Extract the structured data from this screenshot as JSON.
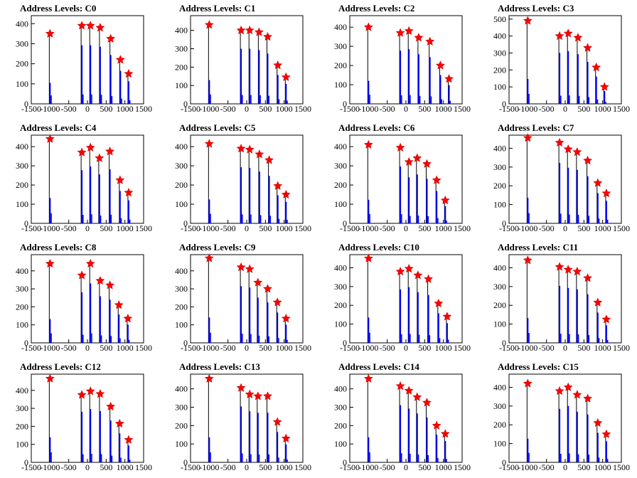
{
  "chart_data": [
    {
      "type": "bar",
      "title": "Address Levels: C0",
      "xlim": [
        -1500,
        1500
      ],
      "ylim": [
        0,
        440
      ],
      "xticks": [
        -1500,
        -1000,
        -500,
        0,
        500,
        1000,
        1500
      ],
      "xtick_labels": [
        "-1500",
        "-1000",
        "-500",
        "0",
        "500",
        "1000",
        "1500"
      ],
      "yticks": [
        0,
        100,
        200,
        300,
        400
      ],
      "ytick_labels": [
        "0",
        "100",
        "200",
        "300",
        "400"
      ],
      "peaks": [
        {
          "x": -1000,
          "y": 350
        },
        {
          "x": -150,
          "y": 390
        },
        {
          "x": 80,
          "y": 390
        },
        {
          "x": 340,
          "y": 380
        },
        {
          "x": 620,
          "y": 325
        },
        {
          "x": 880,
          "y": 220
        },
        {
          "x": 1100,
          "y": 150
        }
      ]
    },
    {
      "type": "bar",
      "title": "Address Levels: C1",
      "xlim": [
        -1500,
        1500
      ],
      "ylim": [
        0,
        480
      ],
      "xticks": [
        -1500,
        -1000,
        -500,
        0,
        500,
        1000,
        1500
      ],
      "xtick_labels": [
        "-1500",
        "-1000",
        "-500",
        "0",
        "500",
        "1000",
        "1500"
      ],
      "yticks": [
        0,
        100,
        200,
        300,
        400
      ],
      "ytick_labels": [
        "0",
        "100",
        "200",
        "300",
        "400"
      ],
      "peaks": [
        {
          "x": -1000,
          "y": 430
        },
        {
          "x": -150,
          "y": 400
        },
        {
          "x": 80,
          "y": 400
        },
        {
          "x": 330,
          "y": 390
        },
        {
          "x": 560,
          "y": 365
        },
        {
          "x": 830,
          "y": 210
        },
        {
          "x": 1050,
          "y": 145
        }
      ]
    },
    {
      "type": "bar",
      "title": "Address Levels: C2",
      "xlim": [
        -1500,
        1500
      ],
      "ylim": [
        0,
        460
      ],
      "xticks": [
        -1500,
        -1000,
        -500,
        0,
        500,
        1000,
        1500
      ],
      "xtick_labels": [
        "-1500",
        "-1000",
        "-500",
        "0",
        "500",
        "1000",
        "1500"
      ],
      "yticks": [
        0,
        100,
        200,
        300,
        400
      ],
      "ytick_labels": [
        "0",
        "100",
        "200",
        "300",
        "400"
      ],
      "peaks": [
        {
          "x": -1000,
          "y": 400
        },
        {
          "x": -150,
          "y": 370
        },
        {
          "x": 80,
          "y": 380
        },
        {
          "x": 340,
          "y": 345
        },
        {
          "x": 640,
          "y": 325
        },
        {
          "x": 920,
          "y": 200
        },
        {
          "x": 1150,
          "y": 130
        }
      ]
    },
    {
      "type": "bar",
      "title": "Address Levels: C3",
      "xlim": [
        -1500,
        1500
      ],
      "ylim": [
        0,
        520
      ],
      "xticks": [
        -1500,
        -1000,
        -500,
        0,
        500,
        1000,
        1500
      ],
      "xtick_labels": [
        "-1500",
        "-1000",
        "-500",
        "0",
        "500",
        "1000",
        "1500"
      ],
      "yticks": [
        0,
        100,
        200,
        300,
        400,
        500
      ],
      "ytick_labels": [
        "0",
        "100",
        "200",
        "300",
        "400",
        "500"
      ],
      "peaks": [
        {
          "x": -1000,
          "y": 490
        },
        {
          "x": -150,
          "y": 400
        },
        {
          "x": 80,
          "y": 415
        },
        {
          "x": 340,
          "y": 390
        },
        {
          "x": 600,
          "y": 330
        },
        {
          "x": 830,
          "y": 215
        },
        {
          "x": 1050,
          "y": 100
        }
      ]
    },
    {
      "type": "bar",
      "title": "Address Levels: C4",
      "xlim": [
        -1500,
        1500
      ],
      "ylim": [
        0,
        460
      ],
      "xticks": [
        -1500,
        -1000,
        -500,
        0,
        500,
        1000,
        1500
      ],
      "xtick_labels": [
        "-1500",
        "-1000",
        "-500",
        "0",
        "500",
        "1000",
        "1500"
      ],
      "yticks": [
        0,
        100,
        200,
        300,
        400
      ],
      "ytick_labels": [
        "0",
        "100",
        "200",
        "300",
        "400"
      ],
      "peaks": [
        {
          "x": -1000,
          "y": 440
        },
        {
          "x": -150,
          "y": 370
        },
        {
          "x": 80,
          "y": 395
        },
        {
          "x": 320,
          "y": 340
        },
        {
          "x": 600,
          "y": 375
        },
        {
          "x": 870,
          "y": 225
        },
        {
          "x": 1100,
          "y": 160
        }
      ]
    },
    {
      "type": "bar",
      "title": "Address Levels: C5",
      "xlim": [
        -1500,
        1500
      ],
      "ylim": [
        0,
        460
      ],
      "xticks": [
        -1500,
        -1000,
        -500,
        0,
        500,
        1000,
        1500
      ],
      "xtick_labels": [
        "-1500",
        "-1000",
        "-500",
        "0",
        "500",
        "1000",
        "1500"
      ],
      "yticks": [
        0,
        100,
        200,
        300,
        400
      ],
      "ytick_labels": [
        "0",
        "100",
        "200",
        "300",
        "400"
      ],
      "peaks": [
        {
          "x": -1000,
          "y": 415
        },
        {
          "x": -150,
          "y": 390
        },
        {
          "x": 80,
          "y": 385
        },
        {
          "x": 340,
          "y": 360
        },
        {
          "x": 600,
          "y": 330
        },
        {
          "x": 830,
          "y": 195
        },
        {
          "x": 1050,
          "y": 150
        }
      ]
    },
    {
      "type": "bar",
      "title": "Address Levels: C6",
      "xlim": [
        -1500,
        1500
      ],
      "ylim": [
        0,
        460
      ],
      "xticks": [
        -1500,
        -1000,
        -500,
        0,
        500,
        1000,
        1500
      ],
      "xtick_labels": [
        "-1500",
        "-1000",
        "-500",
        "0",
        "500",
        "1000",
        "1500"
      ],
      "yticks": [
        0,
        100,
        200,
        300,
        400
      ],
      "ytick_labels": [
        "0",
        "100",
        "200",
        "300",
        "400"
      ],
      "peaks": [
        {
          "x": -1000,
          "y": 410
        },
        {
          "x": -150,
          "y": 395
        },
        {
          "x": 80,
          "y": 320
        },
        {
          "x": 300,
          "y": 340
        },
        {
          "x": 560,
          "y": 310
        },
        {
          "x": 820,
          "y": 225
        },
        {
          "x": 1050,
          "y": 120
        }
      ]
    },
    {
      "type": "bar",
      "title": "Address Levels: C7",
      "xlim": [
        -1500,
        1500
      ],
      "ylim": [
        0,
        470
      ],
      "xticks": [
        -1500,
        -1000,
        -500,
        0,
        500,
        1000,
        1500
      ],
      "xtick_labels": [
        "-1500",
        "-1000",
        "-500",
        "0",
        "500",
        "1000",
        "1500"
      ],
      "yticks": [
        0,
        100,
        200,
        300,
        400
      ],
      "ytick_labels": [
        "0",
        "100",
        "200",
        "300",
        "400"
      ],
      "peaks": [
        {
          "x": -1000,
          "y": 455
        },
        {
          "x": -150,
          "y": 430
        },
        {
          "x": 80,
          "y": 395
        },
        {
          "x": 320,
          "y": 380
        },
        {
          "x": 600,
          "y": 335
        },
        {
          "x": 870,
          "y": 215
        },
        {
          "x": 1100,
          "y": 160
        }
      ]
    },
    {
      "type": "bar",
      "title": "Address Levels: C8",
      "xlim": [
        -1500,
        1500
      ],
      "ylim": [
        0,
        490
      ],
      "xticks": [
        -1500,
        -1000,
        -500,
        0,
        500,
        1000,
        1500
      ],
      "xtick_labels": [
        "-1500",
        "-1000",
        "-500",
        "0",
        "500",
        "1000",
        "1500"
      ],
      "yticks": [
        0,
        100,
        200,
        300,
        400
      ],
      "ytick_labels": [
        "0",
        "100",
        "200",
        "300",
        "400"
      ],
      "peaks": [
        {
          "x": -1000,
          "y": 440
        },
        {
          "x": -150,
          "y": 375
        },
        {
          "x": 80,
          "y": 440
        },
        {
          "x": 340,
          "y": 345
        },
        {
          "x": 600,
          "y": 320
        },
        {
          "x": 840,
          "y": 210
        },
        {
          "x": 1080,
          "y": 135
        }
      ]
    },
    {
      "type": "bar",
      "title": "Address Levels: C9",
      "xlim": [
        -1500,
        1500
      ],
      "ylim": [
        0,
        490
      ],
      "xticks": [
        -1500,
        -1000,
        -500,
        0,
        500,
        1000,
        1500
      ],
      "xtick_labels": [
        "-1500",
        "-1000",
        "-500",
        "0",
        "500",
        "1000",
        "1500"
      ],
      "yticks": [
        0,
        100,
        200,
        300,
        400
      ],
      "ytick_labels": [
        "0",
        "100",
        "200",
        "300",
        "400"
      ],
      "peaks": [
        {
          "x": -1000,
          "y": 470
        },
        {
          "x": -150,
          "y": 420
        },
        {
          "x": 80,
          "y": 410
        },
        {
          "x": 300,
          "y": 335
        },
        {
          "x": 560,
          "y": 300
        },
        {
          "x": 820,
          "y": 225
        },
        {
          "x": 1050,
          "y": 135
        }
      ]
    },
    {
      "type": "bar",
      "title": "Address Levels: C10",
      "xlim": [
        -1500,
        1500
      ],
      "ylim": [
        0,
        470
      ],
      "xticks": [
        -1500,
        -1000,
        -500,
        0,
        500,
        1000,
        1500
      ],
      "xtick_labels": [
        "-1500",
        "-1000",
        "-500",
        "0",
        "500",
        "1000",
        "1500"
      ],
      "yticks": [
        0,
        100,
        200,
        300,
        400
      ],
      "ytick_labels": [
        "0",
        "100",
        "200",
        "300",
        "400"
      ],
      "peaks": [
        {
          "x": -1000,
          "y": 450
        },
        {
          "x": -150,
          "y": 380
        },
        {
          "x": 80,
          "y": 395
        },
        {
          "x": 320,
          "y": 360
        },
        {
          "x": 600,
          "y": 340
        },
        {
          "x": 870,
          "y": 210
        },
        {
          "x": 1100,
          "y": 140
        }
      ]
    },
    {
      "type": "bar",
      "title": "Address Levels: C11",
      "xlim": [
        -1500,
        1500
      ],
      "ylim": [
        0,
        470
      ],
      "xticks": [
        -1500,
        -1000,
        -500,
        0,
        500,
        1000,
        1500
      ],
      "xtick_labels": [
        "-1500",
        "-1000",
        "-500",
        "0",
        "500",
        "1000",
        "1500"
      ],
      "yticks": [
        0,
        100,
        200,
        300,
        400
      ],
      "ytick_labels": [
        "0",
        "100",
        "200",
        "300",
        "400"
      ],
      "peaks": [
        {
          "x": -1000,
          "y": 440
        },
        {
          "x": -150,
          "y": 405
        },
        {
          "x": 80,
          "y": 390
        },
        {
          "x": 320,
          "y": 380
        },
        {
          "x": 600,
          "y": 345
        },
        {
          "x": 870,
          "y": 215
        },
        {
          "x": 1100,
          "y": 125
        }
      ]
    },
    {
      "type": "bar",
      "title": "Address Levels: C12",
      "xlim": [
        -1500,
        1500
      ],
      "ylim": [
        0,
        490
      ],
      "xticks": [
        -1500,
        -1000,
        -500,
        0,
        500,
        1000,
        1500
      ],
      "xtick_labels": [
        "-1500",
        "-1000",
        "-500",
        "0",
        "500",
        "1000",
        "1500"
      ],
      "yticks": [
        0,
        100,
        200,
        300,
        400
      ],
      "ytick_labels": [
        "0",
        "100",
        "200",
        "300",
        "400"
      ],
      "peaks": [
        {
          "x": -1000,
          "y": 465
        },
        {
          "x": -150,
          "y": 375
        },
        {
          "x": 80,
          "y": 395
        },
        {
          "x": 340,
          "y": 380
        },
        {
          "x": 620,
          "y": 310
        },
        {
          "x": 860,
          "y": 215
        },
        {
          "x": 1100,
          "y": 125
        }
      ]
    },
    {
      "type": "bar",
      "title": "Address Levels: C13",
      "xlim": [
        -1500,
        1500
      ],
      "ylim": [
        0,
        480
      ],
      "xticks": [
        -1500,
        -1000,
        -500,
        0,
        500,
        1000,
        1500
      ],
      "xtick_labels": [
        "-1500",
        "-1000",
        "-500",
        "0",
        "500",
        "1000",
        "1500"
      ],
      "yticks": [
        0,
        100,
        200,
        300,
        400
      ],
      "ytick_labels": [
        "0",
        "100",
        "200",
        "300",
        "400"
      ],
      "peaks": [
        {
          "x": -1000,
          "y": 455
        },
        {
          "x": -150,
          "y": 405
        },
        {
          "x": 80,
          "y": 370
        },
        {
          "x": 300,
          "y": 360
        },
        {
          "x": 560,
          "y": 360
        },
        {
          "x": 820,
          "y": 220
        },
        {
          "x": 1050,
          "y": 130
        }
      ]
    },
    {
      "type": "bar",
      "title": "Address Levels: C14",
      "xlim": [
        -1500,
        1500
      ],
      "ylim": [
        0,
        480
      ],
      "xticks": [
        -1500,
        -1000,
        -500,
        0,
        500,
        1000,
        1500
      ],
      "xtick_labels": [
        "-1500",
        "-1000",
        "-500",
        "0",
        "500",
        "1000",
        "1500"
      ],
      "yticks": [
        0,
        100,
        200,
        300,
        400
      ],
      "ytick_labels": [
        "0",
        "100",
        "200",
        "300",
        "400"
      ],
      "peaks": [
        {
          "x": -1000,
          "y": 455
        },
        {
          "x": -150,
          "y": 415
        },
        {
          "x": 80,
          "y": 390
        },
        {
          "x": 300,
          "y": 355
        },
        {
          "x": 560,
          "y": 325
        },
        {
          "x": 820,
          "y": 200
        },
        {
          "x": 1050,
          "y": 155
        }
      ]
    },
    {
      "type": "bar",
      "title": "Address Levels: C15",
      "xlim": [
        -1500,
        1500
      ],
      "ylim": [
        0,
        470
      ],
      "xticks": [
        -1500,
        -1000,
        -500,
        0,
        500,
        1000,
        1500
      ],
      "xtick_labels": [
        "-1500",
        "-1000",
        "-500",
        "0",
        "500",
        "1000",
        "1500"
      ],
      "yticks": [
        0,
        100,
        200,
        300,
        400
      ],
      "ytick_labels": [
        "0",
        "100",
        "200",
        "300",
        "400"
      ],
      "peaks": [
        {
          "x": -1000,
          "y": 420
        },
        {
          "x": -150,
          "y": 380
        },
        {
          "x": 80,
          "y": 400
        },
        {
          "x": 320,
          "y": 360
        },
        {
          "x": 600,
          "y": 340
        },
        {
          "x": 870,
          "y": 210
        },
        {
          "x": 1100,
          "y": 150
        }
      ]
    }
  ],
  "colors": {
    "histogram": "#0000ff",
    "reference": "#000000",
    "peak_marker": "#ff0000",
    "peak_marker_outline": "#cc0000",
    "axes": "#000000"
  }
}
